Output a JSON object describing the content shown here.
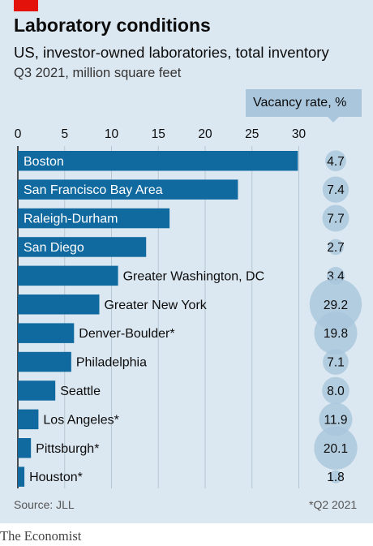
{
  "title": "Laboratory conditions",
  "subtitle": "US, investor-owned laboratories, total inventory",
  "units_label": "Q3 2021, million square feet",
  "vacancy_label": "Vacancy rate, %",
  "source": "Source: JLL",
  "footnote": "*Q2 2021",
  "brand": "The Economist",
  "colors": {
    "bar": "#106aa0",
    "bubble": "#a9c6dc",
    "background": "#dce8f1",
    "accent": "#e3120b"
  },
  "chart_data": {
    "type": "bar",
    "orientation": "horizontal",
    "categories": [
      "Boston",
      "San Francisco Bay Area",
      "Raleigh-Durham",
      "San Diego",
      "Greater Washington, DC",
      "Greater New York",
      "Denver-Boulder*",
      "Philadelphia",
      "Seattle",
      "Los Angeles*",
      "Pittsburgh*",
      "Houston*"
    ],
    "series": [
      {
        "name": "Total inventory",
        "values": [
          29.9,
          23.5,
          16.2,
          13.7,
          10.7,
          8.7,
          6.0,
          5.7,
          4.0,
          2.2,
          1.4,
          0.7
        ]
      },
      {
        "name": "Vacancy rate, %",
        "values": [
          4.7,
          7.4,
          7.7,
          2.7,
          3.4,
          29.2,
          19.8,
          7.1,
          8.0,
          11.9,
          20.1,
          1.8
        ]
      }
    ],
    "x_ticks": [
      0,
      5,
      10,
      15,
      20,
      25,
      30
    ],
    "xlim": [
      0,
      30
    ],
    "grid": true
  }
}
